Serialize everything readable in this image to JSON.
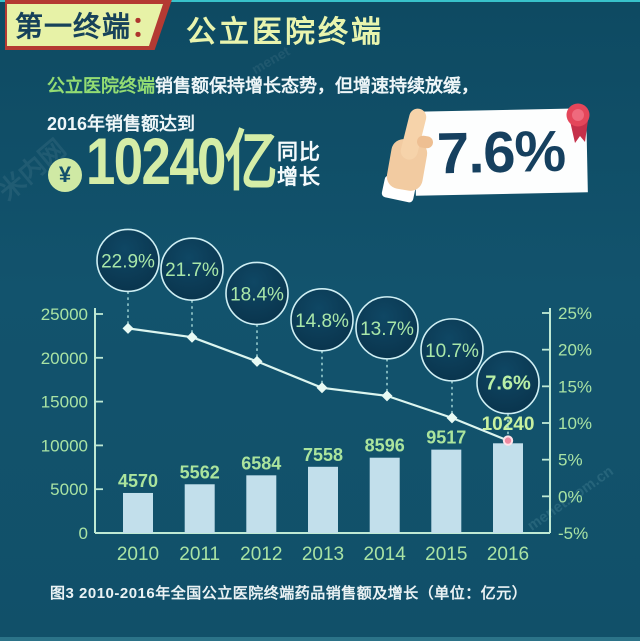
{
  "header": {
    "left_label": "第一终端",
    "left_colon": "：",
    "right_label": "公立医院终端"
  },
  "intro": {
    "line1_highlight": "公立医院终端",
    "line1_rest": "销售额保持增长态势，但增速持续放缓，",
    "line2": "2016年销售额达到"
  },
  "highlight": {
    "currency_symbol": "¥",
    "amount": "10240亿",
    "yoy_line1": "同比",
    "yoy_line2": "增长",
    "growth_value": "7.6%"
  },
  "caption": "图3 2010-2016年全国公立医院终端药品销售额及增长（单位：亿元）",
  "watermark": {
    "logo_text": "米内网",
    "site_text": "menet.com.cn",
    "small_text": "menet"
  },
  "colors": {
    "background": "#12536d",
    "header_pale": "#e7f2a7",
    "header_red": "#b43a33",
    "header_dark_text": "#17425a",
    "highlight_green": "#93dc73",
    "amount_green": "#d5eda7",
    "card_white": "#fdfefe",
    "card_navy_text": "#16405f",
    "ribbon_red": "#e4465a",
    "hand_skin": "#f2cba1",
    "bar_fill": "#c2dfeb",
    "line_stroke": "#dcf5ef",
    "axis_stroke": "#bfe9d4",
    "label_green": "#a9e3a4",
    "bubble_fill_dark": "#09324a",
    "bubble_stroke": "#cfeff4",
    "marker_pink": "#ef8ba1"
  },
  "chart_data": {
    "type": "bar",
    "title": "图3 2010-2016年全国公立医院终端药品销售额及增长（单位：亿元）",
    "categories": [
      "2010",
      "2011",
      "2012",
      "2013",
      "2014",
      "2015",
      "2016"
    ],
    "series": [
      {
        "name": "药品销售额（亿元）",
        "type": "bar",
        "values": [
          4570,
          5562,
          6584,
          7558,
          8596,
          9517,
          10240
        ]
      },
      {
        "name": "同比增长（%）",
        "type": "line",
        "values": [
          22.9,
          21.7,
          18.4,
          14.8,
          13.7,
          10.7,
          7.6
        ]
      }
    ],
    "left_axis": {
      "ticks": [
        0,
        5000,
        10000,
        15000,
        20000,
        25000
      ],
      "range": [
        0,
        25000
      ]
    },
    "right_axis": {
      "tick_values": [
        -5,
        0,
        5,
        10,
        15,
        20,
        25
      ],
      "tick_labels": [
        "-5%",
        "0%",
        "5%",
        "10%",
        "15%",
        "20%",
        "25%"
      ],
      "range": [
        -5,
        25
      ]
    },
    "grid": false,
    "legend": false
  }
}
